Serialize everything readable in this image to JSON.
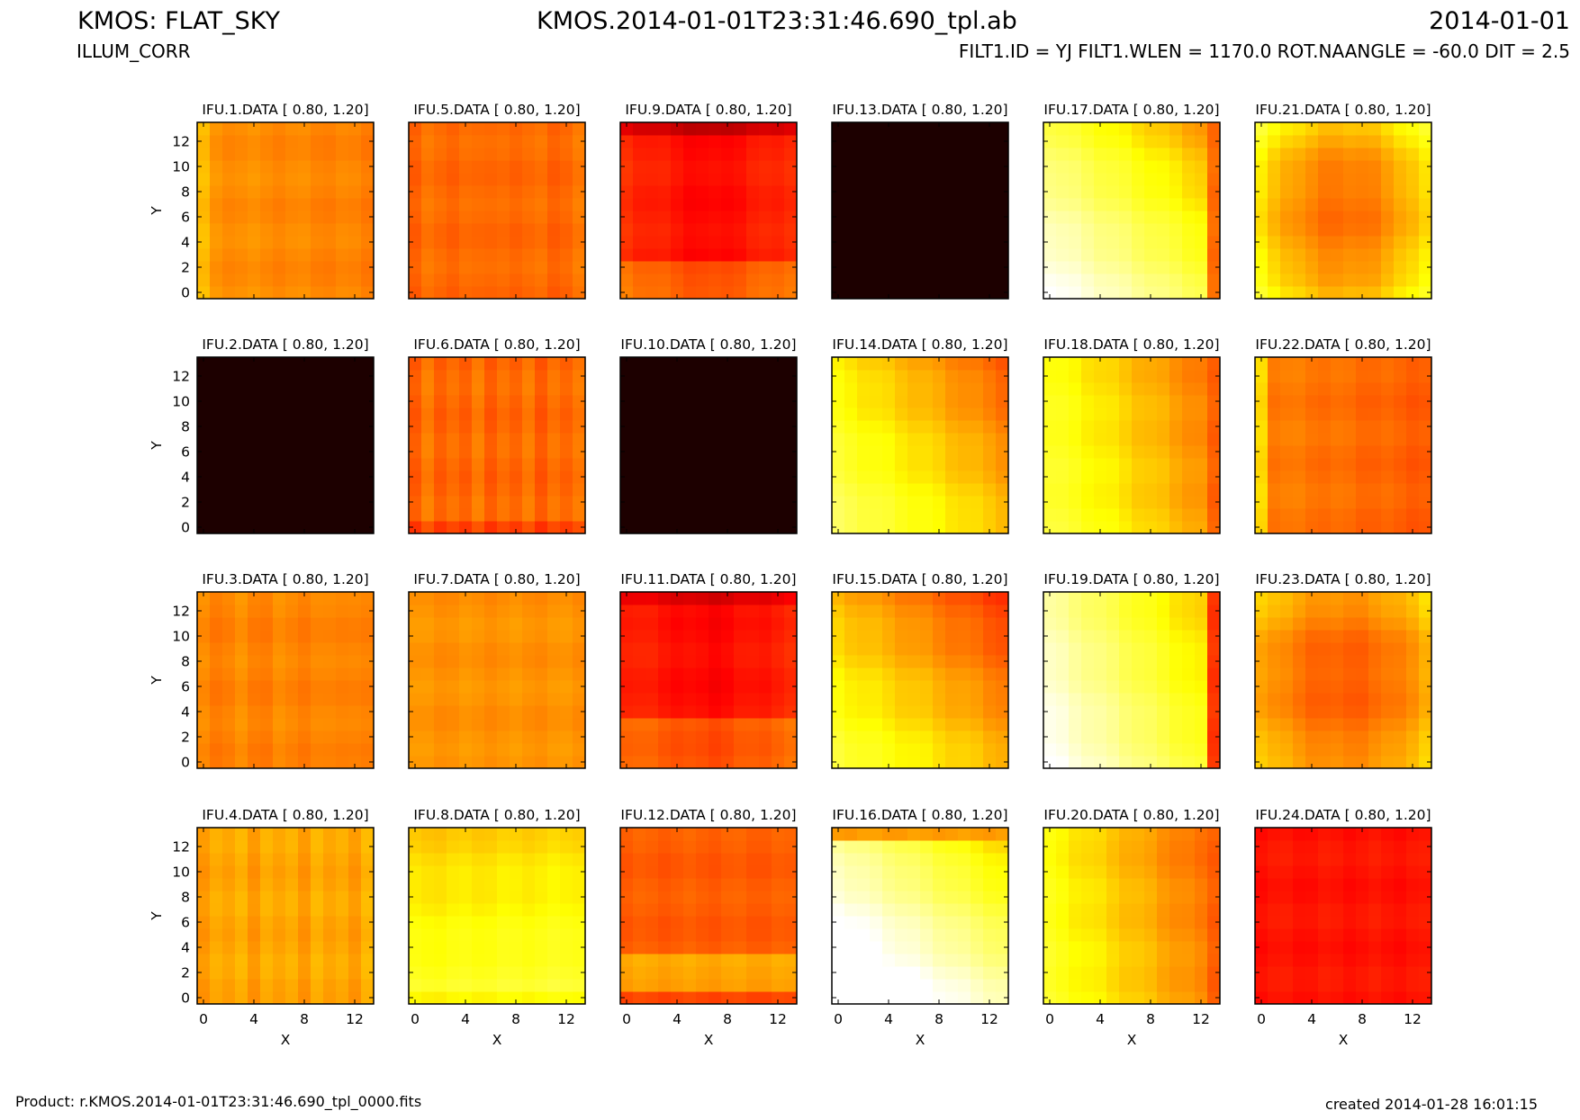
{
  "header": {
    "title_left": "KMOS: FLAT_SKY",
    "subtitle_left": "ILLUM_CORR",
    "title_center": "KMOS.2014-01-01T23:31:46.690_tpl.ab",
    "date_right": "2014-01-01",
    "params_right": "FILT1.ID = YJ FILT1.WLEN = 1170.0 ROT.NAANGLE = -60.0 DIT = 2.5"
  },
  "footer": {
    "product": "Product: r.KMOS.2014-01-01T23:31:46.690_tpl_0000.fits",
    "created": "created 2014-01-28 16:01:15"
  },
  "chart_data": {
    "type": "heatmap",
    "layout": "4 rows x 6 columns of small-multiple heatmaps (14x14 pixels each)",
    "colormap": "hot",
    "value_range": [
      0.8,
      1.2
    ],
    "xlabel": "X",
    "ylabel": "Y",
    "xticks": [
      0,
      4,
      8,
      12
    ],
    "yticks": [
      0,
      2,
      4,
      6,
      8,
      10,
      12
    ],
    "xlim": [
      -0.5,
      13.5
    ],
    "ylim": [
      -0.5,
      13.5
    ],
    "panels": [
      {
        "title": "IFU.1.DATA [ 0.80, 1.20]",
        "description": "uniform orange, slightly lighter left edge"
      },
      {
        "title": "IFU.2.DATA [ 0.80, 1.20]",
        "description": "all black (no data)"
      },
      {
        "title": "IFU.3.DATA [ 0.80, 1.20]",
        "description": "uniform orange-red"
      },
      {
        "title": "IFU.4.DATA [ 0.80, 1.20]",
        "description": "uniform orange with vertical striping"
      },
      {
        "title": "IFU.5.DATA [ 0.80, 1.20]",
        "description": "uniform red-orange"
      },
      {
        "title": "IFU.6.DATA [ 0.80, 1.20]",
        "description": "red-orange with vertical striping"
      },
      {
        "title": "IFU.7.DATA [ 0.80, 1.20]",
        "description": "uniform orange"
      },
      {
        "title": "IFU.8.DATA [ 0.80, 1.20]",
        "description": "orange at top fading to yellow at bottom"
      },
      {
        "title": "IFU.9.DATA [ 0.80, 1.20]",
        "description": "dark red, darkest at top edge"
      },
      {
        "title": "IFU.10.DATA [ 0.80, 1.20]",
        "description": "all black (no data)"
      },
      {
        "title": "IFU.11.DATA [ 0.80, 1.20]",
        "description": "dark red center, red edges"
      },
      {
        "title": "IFU.12.DATA [ 0.80, 1.20]",
        "description": "red with orange band near bottom"
      },
      {
        "title": "IFU.13.DATA [ 0.80, 1.20]",
        "description": "all black (no data)"
      },
      {
        "title": "IFU.14.DATA [ 0.80, 1.20]",
        "description": "yellow lower-left to red upper-right"
      },
      {
        "title": "IFU.15.DATA [ 0.80, 1.20]",
        "description": "yellow lower-left to red upper-right"
      },
      {
        "title": "IFU.16.DATA [ 0.80, 1.20]",
        "description": "white lower-left to yellow/orange upper-right, red top row"
      },
      {
        "title": "IFU.17.DATA [ 0.80, 1.20]",
        "description": "white lower-left to orange upper-right, red right column"
      },
      {
        "title": "IFU.18.DATA [ 0.80, 1.20]",
        "description": "yellow left to red right"
      },
      {
        "title": "IFU.19.DATA [ 0.80, 1.20]",
        "description": "white lower-left to orange right, red right edge"
      },
      {
        "title": "IFU.20.DATA [ 0.80, 1.20]",
        "description": "yellow left/bottom to red right"
      },
      {
        "title": "IFU.21.DATA [ 0.80, 1.20]",
        "description": "red center, yellow corners"
      },
      {
        "title": "IFU.22.DATA [ 0.80, 1.20]",
        "description": "red-orange with yellow left edge"
      },
      {
        "title": "IFU.23.DATA [ 0.80, 1.20]",
        "description": "red center, orange edges"
      },
      {
        "title": "IFU.24.DATA [ 0.80, 1.20]",
        "description": "uniform dark red"
      }
    ]
  }
}
